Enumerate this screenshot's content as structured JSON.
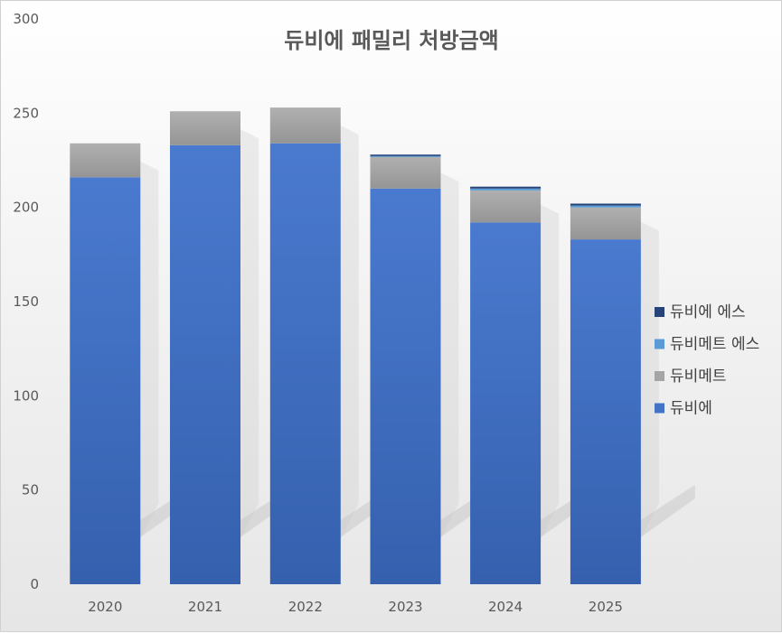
{
  "chart_data": {
    "type": "bar",
    "stacked": true,
    "title": "듀비에 패밀리 처방금액",
    "xlabel": "",
    "ylabel": "",
    "ylim": [
      0,
      300
    ],
    "yticks": [
      0,
      50,
      100,
      150,
      200,
      250,
      300
    ],
    "categories": [
      "2020",
      "2021",
      "2022",
      "2023",
      "2024",
      "2025"
    ],
    "series": [
      {
        "name": "듀비에",
        "color": "#4472C4",
        "values": [
          216,
          233,
          234,
          210,
          192,
          183
        ]
      },
      {
        "name": "듀비메트",
        "color": "#A5A5A5",
        "values": [
          18,
          18,
          19,
          17,
          17,
          17
        ]
      },
      {
        "name": "듀비메트 에스",
        "color": "#5B9BD5",
        "values": [
          0,
          0,
          0,
          0.5,
          1,
          1
        ]
      },
      {
        "name": "듀비에 에스",
        "color": "#264478",
        "values": [
          0,
          0,
          0,
          0.5,
          1,
          1
        ]
      }
    ],
    "legend_position": "right",
    "legend_order": [
      "듀비에 에스",
      "듀비메트 에스",
      "듀비메트",
      "듀비에"
    ],
    "grid": false
  }
}
